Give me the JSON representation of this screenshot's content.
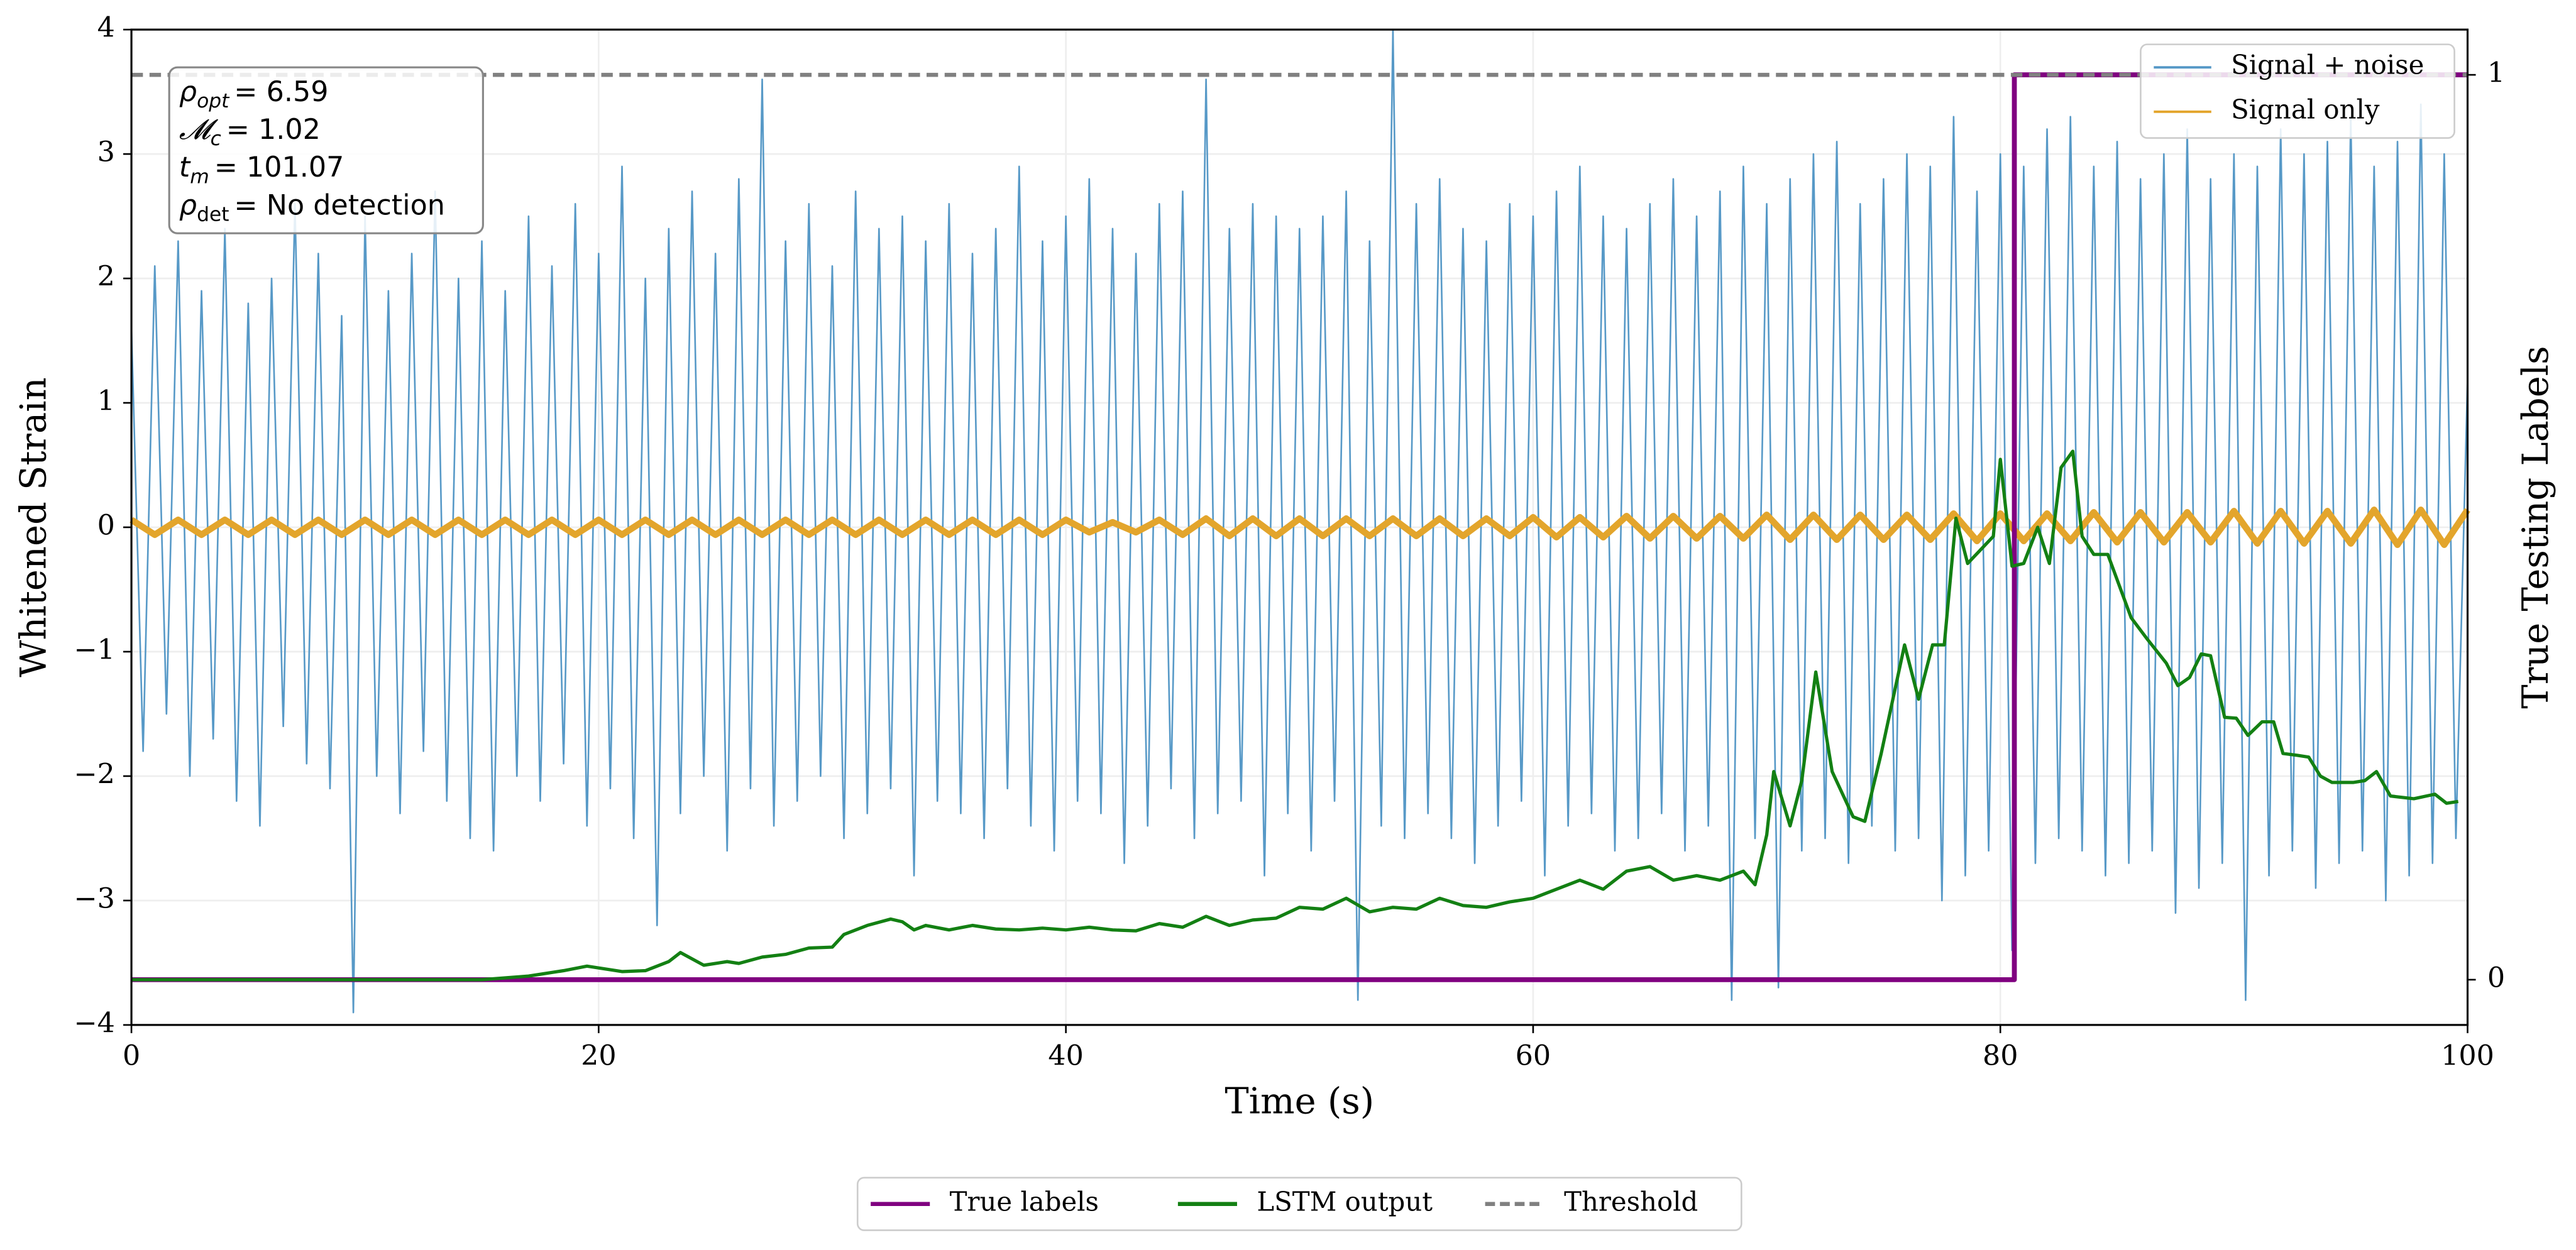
{
  "chart_data": {
    "type": "line",
    "xlabel": "Time (s)",
    "ylabel": "Whitened Strain",
    "y2label": "True Testing Labels",
    "xlim": [
      0,
      100
    ],
    "xticks": [
      0,
      20,
      40,
      60,
      80,
      100
    ],
    "ylim": [
      -4,
      4
    ],
    "yticks": [
      {
        "value": -4,
        "label": "−4"
      },
      {
        "value": -3,
        "label": "−3"
      },
      {
        "value": -2,
        "label": "−2"
      },
      {
        "value": -1,
        "label": "−1"
      },
      0,
      1,
      2,
      3,
      4
    ],
    "y2lim": [
      -0.05,
      1.05
    ],
    "y2ticks": [
      0,
      1
    ],
    "grid": true,
    "annotation": [
      {
        "symbol": "ρ",
        "sub": "opt",
        "text": "= 6.59"
      },
      {
        "symbol": "𝓜",
        "sub": "c",
        "text": "= 1.02"
      },
      {
        "symbol": "t",
        "sub": "m",
        "text": "= 101.07"
      },
      {
        "symbol": "ρ",
        "sub": "det",
        "text": "= No detection"
      }
    ],
    "series": [
      {
        "name": "Signal + noise",
        "color": "#5799c7",
        "legend": "upper right",
        "x": [
          0,
          0.5,
          1,
          1.5,
          2,
          2.5,
          3,
          3.5,
          4,
          4.5,
          5,
          5.5,
          6,
          6.5,
          7,
          7.5,
          8,
          8.5,
          9,
          9.5,
          10,
          10.5,
          11,
          11.5,
          12,
          12.5,
          13,
          13.5,
          14,
          14.5,
          15,
          15.5,
          16,
          16.5,
          17,
          17.5,
          18,
          18.5,
          19,
          19.5,
          20,
          20.5,
          21,
          21.5,
          22,
          22.5,
          23,
          23.5,
          24,
          24.5,
          25,
          25.5,
          26,
          26.5,
          27,
          27.5,
          28,
          28.5,
          29,
          29.5,
          30,
          30.5,
          31,
          31.5,
          32,
          32.5,
          33,
          33.5,
          34,
          34.5,
          35,
          35.5,
          36,
          36.5,
          37,
          37.5,
          38,
          38.5,
          39,
          39.5,
          40,
          40.5,
          41,
          41.5,
          42,
          42.5,
          43,
          43.5,
          44,
          44.5,
          45,
          45.5,
          46,
          46.5,
          47,
          47.5,
          48,
          48.5,
          49,
          49.5,
          50,
          50.5,
          51,
          51.5,
          52,
          52.5,
          53,
          53.5,
          54,
          54.5,
          55,
          55.5,
          56,
          56.5,
          57,
          57.5,
          58,
          58.5,
          59,
          59.5,
          60,
          60.5,
          61,
          61.5,
          62,
          62.5,
          63,
          63.5,
          64,
          64.5,
          65,
          65.5,
          66,
          66.5,
          67,
          67.5,
          68,
          68.5,
          69,
          69.5,
          70,
          70.5,
          71,
          71.5,
          72,
          72.5,
          73,
          73.5,
          74,
          74.5,
          75,
          75.5,
          76,
          76.5,
          77,
          77.5,
          78,
          78.5,
          79,
          79.5,
          80,
          80.5,
          81,
          81.5,
          82,
          82.5,
          83,
          83.5,
          84,
          84.5,
          85,
          85.5,
          86,
          86.5,
          87,
          87.5,
          88,
          88.5,
          89,
          89.5,
          90,
          90.5,
          91,
          91.5,
          92,
          92.5,
          93,
          93.5,
          94,
          94.5,
          95,
          95.5,
          96,
          96.5,
          97,
          97.5,
          98,
          98.5,
          99,
          99.5,
          100
        ],
        "values": [
          1.6,
          -1.8,
          2.1,
          -1.5,
          2.3,
          -2.0,
          1.9,
          -1.7,
          2.4,
          -2.2,
          1.8,
          -2.4,
          2.0,
          -1.6,
          2.6,
          -1.9,
          2.2,
          -2.1,
          1.7,
          -3.9,
          2.5,
          -2.0,
          1.9,
          -2.3,
          2.2,
          -1.8,
          2.7,
          -2.2,
          2.0,
          -2.5,
          2.3,
          -2.6,
          1.9,
          -2.0,
          2.5,
          -2.2,
          2.1,
          -1.9,
          2.6,
          -2.4,
          2.2,
          -2.1,
          2.9,
          -2.5,
          2.0,
          -3.2,
          2.4,
          -2.3,
          2.7,
          -2.0,
          2.2,
          -2.6,
          2.8,
          -2.1,
          3.6,
          -2.4,
          2.3,
          -2.2,
          2.6,
          -2.0,
          2.1,
          -2.5,
          2.7,
          -2.3,
          2.4,
          -2.1,
          2.5,
          -2.8,
          2.3,
          -2.2,
          2.6,
          -2.3,
          2.2,
          -2.5,
          2.4,
          -2.1,
          2.9,
          -2.4,
          2.3,
          -2.6,
          2.5,
          -2.2,
          2.8,
          -2.3,
          2.4,
          -2.7,
          2.2,
          -2.4,
          2.6,
          -2.1,
          2.7,
          -2.5,
          3.6,
          -2.3,
          2.4,
          -2.2,
          2.6,
          -2.8,
          2.5,
          -2.3,
          2.4,
          -2.6,
          2.5,
          -2.2,
          2.7,
          -3.8,
          2.3,
          -2.4,
          4.0,
          -2.5,
          2.6,
          -2.3,
          2.8,
          -2.5,
          2.4,
          -2.7,
          2.3,
          -2.4,
          2.6,
          -2.2,
          2.5,
          -2.8,
          2.7,
          -2.4,
          2.9,
          -2.3,
          2.5,
          -2.6,
          2.4,
          -2.5,
          2.6,
          -2.3,
          2.8,
          -2.6,
          2.5,
          -2.4,
          2.7,
          -3.8,
          2.9,
          -2.5,
          2.6,
          -3.7,
          2.8,
          -2.6,
          3.0,
          -2.5,
          3.1,
          -2.7,
          2.6,
          -2.4,
          2.8,
          -2.6,
          3.0,
          -2.5,
          2.9,
          -3.0,
          3.3,
          -2.8,
          2.7,
          -2.6,
          3.0,
          -3.4,
          2.9,
          -2.7,
          3.2,
          -2.5,
          3.3,
          -2.6,
          2.9,
          -2.8,
          3.1,
          -2.7,
          2.8,
          -2.6,
          3.0,
          -3.1,
          3.2,
          -2.9,
          2.8,
          -2.7,
          3.0,
          -3.8,
          2.9,
          -2.8,
          3.2,
          -2.6,
          3.0,
          -2.9,
          3.1,
          -2.7,
          3.3,
          -2.6,
          2.9,
          -3.0,
          3.1,
          -2.8,
          3.4,
          -2.7,
          3.0,
          -2.5,
          1.2
        ]
      },
      {
        "name": "Signal only",
        "color": "#e3a52c",
        "legend": "upper right",
        "x": [
          0,
          1,
          2,
          3,
          4,
          5,
          6,
          7,
          8,
          9,
          10,
          11,
          12,
          13,
          14,
          15,
          16,
          17,
          18,
          19,
          20,
          21,
          22,
          23,
          24,
          25,
          26,
          27,
          28,
          29,
          30,
          31,
          32,
          33,
          34,
          35,
          36,
          37,
          38,
          39,
          40,
          41,
          42,
          43,
          44,
          45,
          46,
          47,
          48,
          49,
          50,
          51,
          52,
          53,
          54,
          55,
          56,
          57,
          58,
          59,
          60,
          61,
          62,
          63,
          64,
          65,
          66,
          67,
          68,
          69,
          70,
          71,
          72,
          73,
          74,
          75,
          76,
          77,
          78,
          79,
          80,
          81,
          82,
          83,
          84,
          85,
          86,
          87,
          88,
          89,
          90,
          91,
          92,
          93,
          94,
          95,
          96,
          97,
          98,
          99,
          100
        ],
        "values": [
          0.06,
          -0.06,
          0.06,
          -0.06,
          0.06,
          -0.06,
          0.06,
          -0.06,
          0.06,
          -0.06,
          0.06,
          -0.06,
          0.06,
          -0.06,
          0.06,
          -0.06,
          0.06,
          -0.06,
          0.06,
          -0.06,
          0.06,
          -0.06,
          0.06,
          -0.06,
          0.06,
          -0.06,
          0.06,
          -0.06,
          0.06,
          -0.06,
          0.06,
          -0.06,
          0.06,
          -0.06,
          0.06,
          -0.06,
          0.06,
          -0.06,
          0.06,
          -0.06,
          0.06,
          -0.04,
          0.04,
          -0.04,
          0.06,
          -0.06,
          0.07,
          -0.07,
          0.07,
          -0.07,
          0.07,
          -0.07,
          0.07,
          -0.07,
          0.07,
          -0.07,
          0.07,
          -0.07,
          0.07,
          -0.07,
          0.08,
          -0.08,
          0.08,
          -0.08,
          0.09,
          -0.09,
          0.09,
          -0.09,
          0.09,
          -0.09,
          0.1,
          -0.1,
          0.1,
          -0.1,
          0.1,
          -0.1,
          0.1,
          -0.1,
          0.11,
          -0.11,
          0.11,
          -0.11,
          0.11,
          -0.11,
          0.12,
          -0.12,
          0.12,
          -0.12,
          0.12,
          -0.12,
          0.13,
          -0.13,
          0.13,
          -0.13,
          0.13,
          -0.13,
          0.14,
          -0.14,
          0.14,
          -0.14,
          0.14
        ]
      },
      {
        "name": "True labels",
        "color": "#800080",
        "axis": "y2",
        "legend": "lower center",
        "x": [
          0,
          80.6,
          80.6,
          100
        ],
        "values": [
          0,
          0,
          1,
          1
        ]
      },
      {
        "name": "LSTM output",
        "color": "#138013",
        "axis": "y2",
        "legend": "lower center",
        "x": [
          0,
          5,
          10,
          15,
          17,
          18.5,
          19.5,
          20,
          21,
          22,
          23,
          23.5,
          24.5,
          25.5,
          26,
          27,
          28,
          29,
          30,
          30.5,
          31.5,
          32.5,
          33,
          33.5,
          34,
          35,
          36,
          37,
          38,
          39,
          40,
          41,
          42,
          43,
          44,
          45,
          46,
          47,
          48,
          49,
          50,
          51,
          52,
          53,
          54,
          55,
          56,
          57,
          58,
          59,
          60,
          61,
          62,
          63,
          64,
          65,
          66,
          67,
          68,
          69,
          69.5,
          70,
          70.3,
          71,
          71.5,
          72.1,
          72.8,
          73.7,
          74.2,
          74.9,
          75.9,
          76.5,
          77.1,
          77.6,
          78.1,
          78.6,
          79.7,
          80,
          80.5,
          81,
          81.6,
          82.1,
          82.6,
          83.1,
          83.5,
          84,
          84.6,
          85.6,
          86.3,
          87.1,
          87.6,
          88.1,
          88.6,
          89,
          89.6,
          90.1,
          90.6,
          91.2,
          91.7,
          92.1,
          92.7,
          93.2,
          93.7,
          94.2,
          94.7,
          95.1,
          95.6,
          96.1,
          96.7,
          97.7,
          98.6,
          99.1,
          99.6
        ],
        "values": [
          0,
          0,
          0,
          0,
          0.004,
          0.01,
          0.015,
          0.013,
          0.009,
          0.01,
          0.02,
          0.03,
          0.016,
          0.02,
          0.018,
          0.025,
          0.028,
          0.035,
          0.036,
          0.05,
          0.06,
          0.067,
          0.064,
          0.055,
          0.06,
          0.055,
          0.06,
          0.056,
          0.055,
          0.057,
          0.055,
          0.058,
          0.055,
          0.054,
          0.062,
          0.058,
          0.07,
          0.06,
          0.066,
          0.068,
          0.08,
          0.078,
          0.09,
          0.075,
          0.08,
          0.078,
          0.09,
          0.082,
          0.08,
          0.086,
          0.09,
          0.1,
          0.11,
          0.1,
          0.12,
          0.125,
          0.11,
          0.115,
          0.11,
          0.12,
          0.105,
          0.16,
          0.23,
          0.17,
          0.22,
          0.34,
          0.23,
          0.18,
          0.175,
          0.25,
          0.37,
          0.31,
          0.37,
          0.37,
          0.51,
          0.46,
          0.49,
          0.575,
          0.457,
          0.46,
          0.5,
          0.46,
          0.566,
          0.584,
          0.49,
          0.47,
          0.47,
          0.4,
          0.376,
          0.35,
          0.325,
          0.334,
          0.36,
          0.358,
          0.29,
          0.289,
          0.27,
          0.285,
          0.285,
          0.25,
          0.248,
          0.246,
          0.225,
          0.218,
          0.218,
          0.218,
          0.22,
          0.23,
          0.203,
          0.2,
          0.205,
          0.195,
          0.197
        ]
      },
      {
        "name": "Threshold",
        "color": "#808080",
        "axis": "y2",
        "dash": true,
        "legend": "lower center",
        "x": [
          0,
          100
        ],
        "values": [
          1,
          1
        ]
      }
    ]
  }
}
